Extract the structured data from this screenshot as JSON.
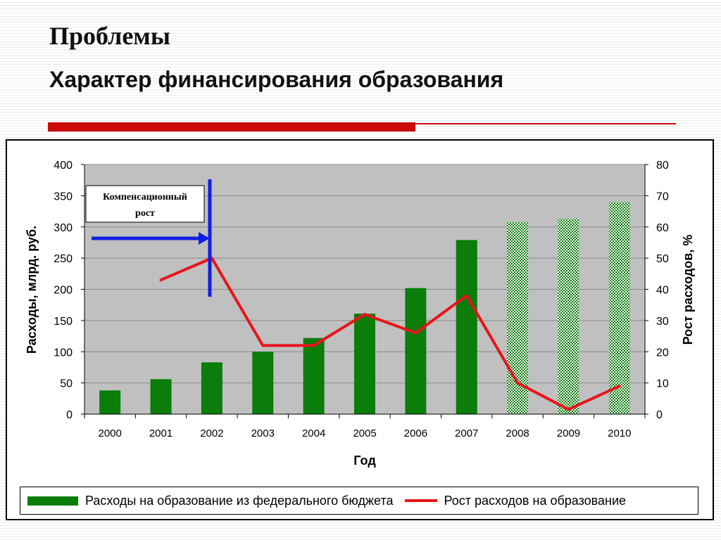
{
  "header": {
    "title": "Проблемы",
    "subtitle": "Характер финансирования образования"
  },
  "colors": {
    "accent": "#cc0a0a",
    "bar": "#0a7d0a",
    "line": "#e8141b",
    "annotation": "#1020e0",
    "plot_bg": "#c0c0c0"
  },
  "chart_data": {
    "type": "bar",
    "categories": [
      "2000",
      "2001",
      "2002",
      "2003",
      "2004",
      "2005",
      "2006",
      "2007",
      "2008",
      "2009",
      "2010"
    ],
    "xlabel": "Год",
    "ylabel": "Расходы, млрд. руб.",
    "y2label": "Рост расходов, %",
    "ylim": [
      0,
      400
    ],
    "y2lim": [
      0,
      80
    ],
    "yticks": [
      "0",
      "50",
      "100",
      "150",
      "200",
      "250",
      "300",
      "350",
      "400"
    ],
    "y2ticks": [
      "0",
      "10",
      "20",
      "30",
      "40",
      "50",
      "60",
      "70",
      "80"
    ],
    "grid": true,
    "legend_position": "bottom",
    "series": [
      {
        "name": "Расходы на образование из федерального бюджета",
        "type": "bar",
        "values": [
          38,
          56,
          83,
          100,
          122,
          161,
          202,
          279,
          308,
          313,
          340
        ],
        "pattern": [
          false,
          false,
          false,
          false,
          false,
          false,
          false,
          false,
          true,
          true,
          true
        ]
      },
      {
        "name": "Рост расходов на образование",
        "type": "line",
        "axis": "right",
        "values": [
          null,
          43,
          50,
          22,
          22,
          32,
          26,
          38,
          10,
          1.5,
          9
        ]
      }
    ],
    "annotations": [
      {
        "text_line1": "Компенсационный",
        "text_line2": "рост"
      }
    ]
  }
}
